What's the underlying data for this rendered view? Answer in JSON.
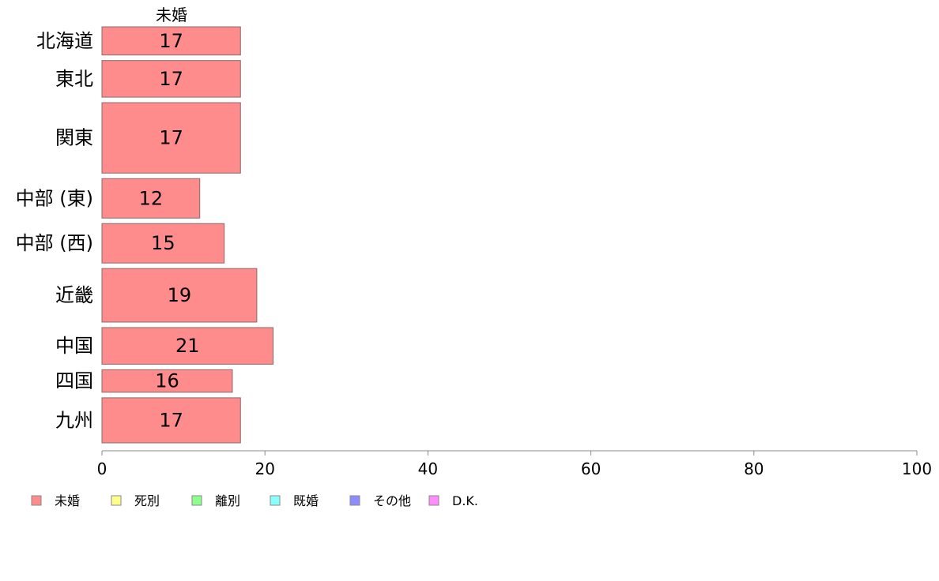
{
  "chart_data": {
    "type": "bar",
    "orientation": "horizontal",
    "stacked": true,
    "column_title": "未婚",
    "categories": [
      "北海道",
      "東北",
      "関東",
      "中部 (東)",
      "中部 (西)",
      "近畿",
      "中国",
      "四国",
      "九州"
    ],
    "relative_band_weights": [
      1.0,
      1.3,
      2.5,
      1.4,
      1.4,
      1.9,
      1.3,
      0.8,
      1.6
    ],
    "series": [
      {
        "name": "未婚",
        "values": [
          17,
          17,
          17,
          12,
          15,
          19,
          21,
          16,
          17
        ],
        "value_labels": [
          "17",
          "17",
          "17",
          "12",
          "15",
          "19",
          "21",
          "16",
          "17"
        ],
        "color": "#FF8C8C"
      }
    ],
    "legend_entries": [
      {
        "name": "未婚",
        "color": "#FF8C8C"
      },
      {
        "name": "死別",
        "color": "#FFFF8C"
      },
      {
        "name": "離別",
        "color": "#8CFF8C"
      },
      {
        "name": "既婚",
        "color": "#8CFFFF"
      },
      {
        "name": "その他",
        "color": "#8C8CFF"
      },
      {
        "name": "D.K.",
        "color": "#FF8CFF"
      }
    ],
    "xlim": [
      0,
      100
    ],
    "xticks": [
      "0",
      "20",
      "40",
      "60",
      "80",
      "100"
    ],
    "xlabel": "",
    "ylabel": "",
    "grid": false,
    "legend_position": "bottom-left"
  }
}
